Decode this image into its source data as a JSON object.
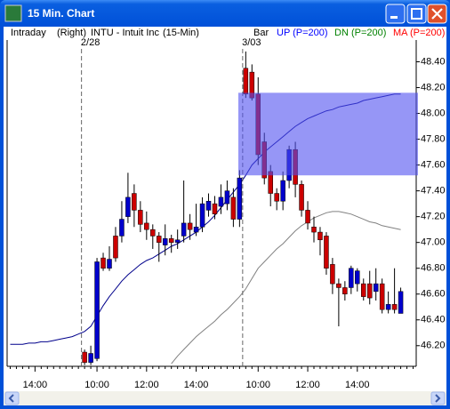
{
  "window": {
    "title": "15 Min. Chart"
  },
  "chart_data": {
    "type": "candlestick",
    "header": [
      "Intraday",
      "(Right)",
      "INTU - Intuit Inc",
      "(15-Min)",
      "Bar"
    ],
    "indicators": [
      {
        "label": "UP (P=200)",
        "color": "#0000ff"
      },
      {
        "label": "DN (P=200)",
        "color": "#008000"
      },
      {
        "label": "MA (P=200)",
        "color": "#ff0000"
      }
    ],
    "day_labels": [
      "2/28",
      "3/03"
    ],
    "categories": [
      null,
      null,
      null,
      null,
      "14:00",
      null,
      null,
      null,
      null,
      null,
      null,
      null,
      null,
      null,
      "10:00",
      null,
      null,
      null,
      null,
      null,
      null,
      null,
      "12:00",
      null,
      null,
      null,
      null,
      null,
      null,
      null,
      "14:00",
      null,
      null,
      null,
      null,
      null,
      null,
      null,
      null,
      null,
      "10:00",
      null,
      null,
      null,
      null,
      null,
      null,
      null,
      "12:00",
      null,
      null,
      null,
      null,
      null,
      null,
      null,
      "14:00",
      null,
      null,
      null,
      null,
      null,
      null,
      null,
      null,
      null
    ],
    "open": [
      null,
      null,
      null,
      null,
      null,
      null,
      null,
      null,
      null,
      null,
      null,
      null,
      46.15,
      46.07,
      46.1,
      46.88,
      46.8,
      47.05,
      47.05,
      47.2,
      47.38,
      47.25,
      47.15,
      47.1,
      47.05,
      46.98,
      47.03,
      47.0,
      47.05,
      47.15,
      47.08,
      47.12,
      47.25,
      47.3,
      47.28,
      47.3,
      47.35,
      47.18,
      48.35,
      48.32,
      48.15,
      47.78,
      47.55,
      47.38,
      47.32,
      47.48,
      47.72,
      47.45,
      47.25,
      47.12,
      47.08,
      47.05,
      46.83,
      46.68,
      46.65,
      46.65,
      46.68,
      46.68,
      46.68,
      46.62,
      46.68,
      46.48,
      46.52,
      46.45,
      null,
      null
    ],
    "high": [
      null,
      null,
      null,
      null,
      null,
      null,
      null,
      null,
      null,
      null,
      null,
      null,
      46.17,
      46.2,
      46.88,
      46.92,
      46.97,
      47.12,
      47.32,
      47.54,
      47.45,
      47.32,
      47.24,
      47.14,
      47.08,
      47.14,
      47.06,
      47.1,
      47.48,
      47.22,
      47.3,
      47.35,
      47.38,
      47.36,
      47.45,
      47.48,
      47.42,
      47.56,
      48.48,
      48.38,
      48.28,
      47.85,
      47.6,
      47.42,
      47.55,
      47.75,
      47.78,
      47.48,
      47.32,
      47.2,
      47.12,
      47.08,
      46.88,
      46.72,
      46.7,
      46.82,
      46.8,
      46.72,
      46.78,
      46.8,
      46.72,
      46.62,
      46.8,
      46.65,
      null,
      null
    ],
    "low": [
      null,
      null,
      null,
      null,
      null,
      null,
      null,
      null,
      null,
      null,
      null,
      null,
      46.05,
      46.05,
      46.08,
      46.78,
      46.78,
      46.85,
      47.0,
      47.15,
      47.12,
      47.08,
      47.02,
      46.95,
      46.85,
      46.9,
      46.92,
      46.95,
      47.0,
      47.02,
      47.05,
      47.08,
      47.2,
      47.18,
      47.22,
      47.25,
      47.12,
      47.12,
      48.12,
      48.1,
      47.6,
      47.45,
      47.28,
      47.25,
      47.25,
      47.42,
      47.35,
      47.2,
      47.1,
      47.0,
      46.9,
      46.75,
      46.6,
      46.35,
      46.55,
      46.6,
      46.62,
      46.55,
      46.52,
      46.55,
      46.45,
      46.45,
      46.45,
      46.45,
      null,
      null
    ],
    "close": [
      null,
      null,
      null,
      null,
      null,
      null,
      null,
      null,
      null,
      null,
      null,
      null,
      46.07,
      46.14,
      46.85,
      46.8,
      46.87,
      46.88,
      47.18,
      47.35,
      47.25,
      47.14,
      47.1,
      47.05,
      47.0,
      47.03,
      47.0,
      47.02,
      47.15,
      47.1,
      47.12,
      47.3,
      47.32,
      47.22,
      47.35,
      47.4,
      47.18,
      47.5,
      48.15,
      48.12,
      47.68,
      47.5,
      47.38,
      47.32,
      47.48,
      47.72,
      47.45,
      47.25,
      47.15,
      47.08,
      47.02,
      46.8,
      46.68,
      46.65,
      46.6,
      46.8,
      46.78,
      46.58,
      46.57,
      46.68,
      46.48,
      46.52,
      46.48,
      46.62,
      null,
      null
    ],
    "up_color": "#0000cc",
    "down_color": "#cc0000",
    "lines": [
      {
        "color": "#00008b",
        "values": [
          46.21,
          46.21,
          46.21,
          46.22,
          46.22,
          46.23,
          46.23,
          46.24,
          46.25,
          46.26,
          46.27,
          46.29,
          46.31,
          46.35,
          46.43,
          46.51,
          46.58,
          46.64,
          46.7,
          46.75,
          46.79,
          46.83,
          46.86,
          46.88,
          46.91,
          46.94,
          46.97,
          46.99,
          47.02,
          47.05,
          47.08,
          47.12,
          47.16,
          47.21,
          47.27,
          47.33,
          47.39,
          47.45,
          47.52,
          47.6,
          47.65,
          47.7,
          47.74,
          47.78,
          47.82,
          47.86,
          47.9,
          47.93,
          47.96,
          47.98,
          48.0,
          48.02,
          48.03,
          48.05,
          48.06,
          48.07,
          48.08,
          48.1,
          48.11,
          48.12,
          48.13,
          48.14,
          48.15,
          48.15,
          null,
          null
        ]
      },
      {
        "color": "#808080",
        "values": [
          null,
          null,
          null,
          null,
          null,
          null,
          null,
          null,
          null,
          null,
          null,
          null,
          null,
          null,
          null,
          null,
          null,
          null,
          null,
          null,
          null,
          null,
          null,
          null,
          null,
          null,
          46.06,
          46.12,
          46.17,
          46.22,
          46.27,
          46.31,
          46.35,
          46.39,
          46.44,
          46.48,
          46.53,
          46.58,
          46.64,
          46.72,
          46.8,
          46.85,
          46.9,
          46.95,
          46.99,
          47.04,
          47.09,
          47.13,
          47.16,
          47.19,
          47.21,
          47.23,
          47.24,
          47.24,
          47.23,
          47.22,
          47.2,
          47.18,
          47.16,
          47.15,
          47.13,
          47.12,
          47.11,
          47.1,
          null,
          null
        ]
      }
    ],
    "highlight": [
      47.52,
      48.16
    ],
    "highlight_color": "#5050f0",
    "ylim": [
      46.04,
      48.5
    ],
    "yticks": [
      {
        "value": 46.2,
        "label": "46.20"
      },
      {
        "value": 46.4,
        "label": "46.40"
      },
      {
        "value": 46.6,
        "label": "46.60"
      },
      {
        "value": 46.8,
        "label": "46.80"
      },
      {
        "value": 47.0,
        "label": "47.00"
      },
      {
        "value": 47.2,
        "label": "47.20"
      },
      {
        "value": 47.4,
        "label": "47.40"
      },
      {
        "value": 47.6,
        "label": "47.60"
      },
      {
        "value": 47.8,
        "label": "47.80"
      },
      {
        "value": 48.0,
        "label": "48.00"
      },
      {
        "value": 48.2,
        "label": "48.20"
      },
      {
        "value": 48.4,
        "label": "48.40"
      }
    ]
  }
}
